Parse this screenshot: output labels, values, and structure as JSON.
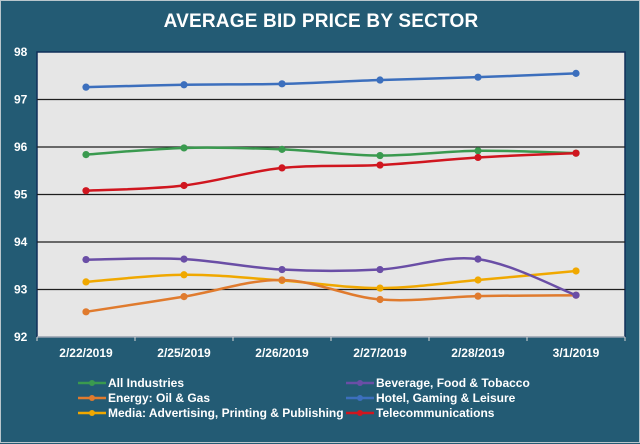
{
  "chart_data": {
    "type": "line",
    "title": "AVERAGE BID PRICE BY SECTOR",
    "xlabel": "",
    "ylabel": "",
    "categories": [
      "2/22/2019",
      "2/25/2019",
      "2/26/2019",
      "2/27/2019",
      "2/28/2019",
      "3/1/2019"
    ],
    "ylim": [
      92,
      98
    ],
    "yticks": [
      "92",
      "93",
      "94",
      "95",
      "96",
      "97",
      "98"
    ],
    "grid": true,
    "legend_position": "bottom",
    "series": [
      {
        "name": "All Industries",
        "color": "#3a9a4f",
        "values": [
          95.84,
          95.98,
          95.95,
          95.82,
          95.92,
          95.87
        ]
      },
      {
        "name": "Beverage, Food & Tobacco",
        "color": "#6a4ea6",
        "values": [
          93.63,
          93.64,
          93.42,
          93.42,
          93.64,
          92.88
        ]
      },
      {
        "name": "Energy: Oil & Gas",
        "color": "#e07b2e",
        "values": [
          92.53,
          92.85,
          93.2,
          92.79,
          92.86,
          92.88
        ]
      },
      {
        "name": "Hotel, Gaming & Leisure",
        "color": "#3c6fbd",
        "values": [
          97.26,
          97.31,
          97.33,
          97.41,
          97.47,
          97.55
        ]
      },
      {
        "name": "Media: Advertising, Printing & Publishing",
        "color": "#f0a800",
        "values": [
          93.16,
          93.31,
          93.19,
          93.03,
          93.2,
          93.39
        ]
      },
      {
        "name": "Telecommunications",
        "color": "#d0161f",
        "values": [
          95.08,
          95.19,
          95.56,
          95.62,
          95.78,
          95.87
        ]
      }
    ]
  }
}
